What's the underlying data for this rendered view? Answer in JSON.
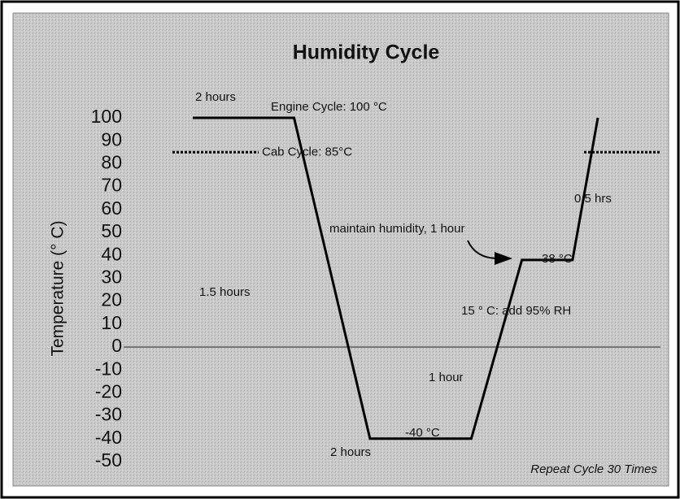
{
  "chart_data": {
    "type": "line",
    "title": "Humidity Cycle",
    "ylabel": "Temperature (° C)",
    "x": [
      0,
      2,
      3.5,
      5.5,
      6.5,
      7.5,
      8
    ],
    "xlim": [
      0,
      8
    ],
    "series": [
      {
        "name": "Temperature",
        "color": "#000000",
        "values": [
          100,
          100,
          -40,
          -40,
          38,
          38,
          100
        ]
      }
    ],
    "ylim": [
      -50,
      100
    ],
    "yticks": [
      100,
      90,
      80,
      70,
      60,
      50,
      40,
      30,
      20,
      10,
      0,
      -10,
      -20,
      -30,
      -40,
      -50
    ],
    "reference_line": {
      "value": 85,
      "label": "Cab Cycle: 85°C"
    },
    "annotations": [
      "2 hours",
      "Engine Cycle: 100 °C",
      "1.5 hours",
      "2 hours",
      "-40 °C",
      "1 hour",
      "15 ° C: add 95% RH",
      "maintain humidity, 1 hour",
      "38 °C",
      "0.5 hrs",
      "Repeat Cycle 30 Times"
    ]
  }
}
